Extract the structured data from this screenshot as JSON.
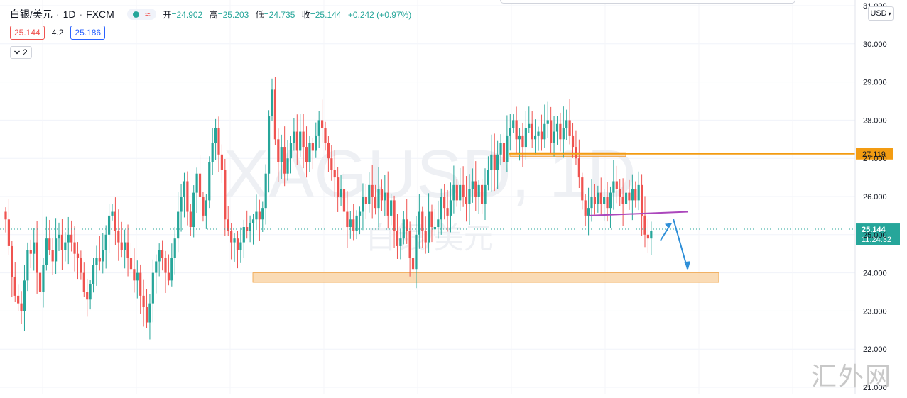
{
  "header": {
    "symbol": "白银/美元",
    "interval": "1D",
    "exchange": "FXCM",
    "status_dot_color": "#26a69a",
    "approx_icon": "≈",
    "ohlc": {
      "open_label": "开",
      "open": "=24.902",
      "high_label": "高",
      "high": "=25.203",
      "low_label": "低",
      "low": "=24.735",
      "close_label": "收",
      "close": "=25.144",
      "change": "+0.242 (+0.97%)"
    },
    "bid": "25.144",
    "spread": "4.2",
    "ask": "25.186",
    "indicators_count": "2"
  },
  "price_scale": {
    "currency": "USD",
    "ticks": [
      "21.000",
      "22.000",
      "23.000",
      "24.000",
      "25.000",
      "26.000",
      "27.000",
      "28.000",
      "29.000",
      "30.000",
      "31.000"
    ],
    "level_label": "27.119",
    "last_price": "25.144",
    "countdown": "11:24:32"
  },
  "chart_data": {
    "type": "candlestick",
    "symbol": "XAGUSD",
    "interval": "1D",
    "ylim": [
      21,
      31.1
    ],
    "up_color": "#26a69a",
    "down_color": "#ef5350",
    "closes": [
      25.4,
      24.7,
      23.9,
      23.4,
      23.2,
      23.0,
      23.8,
      24.6,
      24.5,
      24.8,
      24.0,
      23.5,
      24.2,
      24.9,
      24.6,
      24.3,
      24.9,
      25.0,
      24.6,
      24.8,
      25.0,
      24.8,
      24.5,
      24.4,
      24.0,
      23.5,
      23.3,
      23.7,
      24.2,
      24.4,
      24.3,
      24.6,
      25.0,
      25.5,
      25.6,
      25.1,
      24.8,
      24.6,
      24.8,
      24.4,
      24.1,
      23.8,
      24.0,
      23.4,
      23.1,
      22.7,
      23.2,
      24.0,
      24.3,
      24.6,
      24.4,
      24.0,
      23.8,
      24.4,
      24.9,
      25.6,
      26.0,
      26.4,
      25.6,
      25.2,
      26.1,
      26.6,
      26.0,
      25.5,
      25.9,
      26.9,
      27.4,
      27.8,
      27.1,
      26.7,
      25.4,
      25.1,
      24.8,
      24.9,
      24.6,
      24.8,
      25.2,
      25.1,
      25.3,
      25.4,
      25.6,
      25.4,
      25.7,
      26.6,
      28.1,
      28.8,
      27.5,
      26.9,
      27.3,
      26.6,
      27.0,
      27.4,
      27.7,
      27.2,
      27.7,
      27.3,
      26.9,
      27.4,
      27.2,
      27.6,
      28.0,
      27.8,
      27.4,
      27.0,
      26.7,
      26.5,
      26.0,
      26.2,
      25.6,
      25.2,
      25.4,
      25.1,
      25.5,
      25.6,
      26.0,
      25.8,
      26.3,
      26.0,
      25.7,
      26.2,
      25.9,
      26.1,
      25.5,
      25.9,
      25.1,
      24.7,
      24.9,
      25.4,
      25.1,
      24.4,
      24.1,
      25.0,
      25.6,
      25.1,
      24.8,
      25.6,
      25.2,
      25.2,
      25.4,
      26.0,
      25.7,
      25.5,
      25.9,
      26.3,
      25.9,
      26.3,
      26.0,
      25.8,
      26.2,
      26.4,
      26.0,
      26.3,
      25.8,
      26.3,
      26.7,
      27.1,
      26.7,
      27.1,
      27.4,
      26.9,
      27.6,
      27.8,
      28.0,
      27.5,
      27.6,
      27.3,
      27.8,
      27.9,
      27.5,
      27.6,
      27.7,
      27.5,
      27.9,
      28.0,
      27.4,
      27.7,
      27.9,
      27.5,
      27.8,
      28.0,
      27.6,
      27.3,
      27.0,
      26.5,
      25.9,
      25.5,
      25.7,
      26.0,
      25.8,
      26.1,
      25.8,
      26.0,
      25.7,
      26.1,
      26.4,
      26.2,
      26.0,
      25.8,
      26.1,
      25.9,
      26.2,
      25.9,
      26.3,
      25.5,
      25.0,
      24.9,
      25.1
    ],
    "annotations": {
      "support_zone": [
        23.75,
        24.0
      ],
      "resistance_zone": [
        27.05,
        27.15
      ],
      "resistance_line": 27.119,
      "purple_trendline": [
        25.5,
        25.6
      ],
      "projected_path": [
        "bounce to ~25.3",
        "drop to ~24.1"
      ]
    }
  },
  "watermark": {
    "big": "XAGUSD, 1D",
    "small": "白银/美元",
    "corner": "汇外网"
  }
}
